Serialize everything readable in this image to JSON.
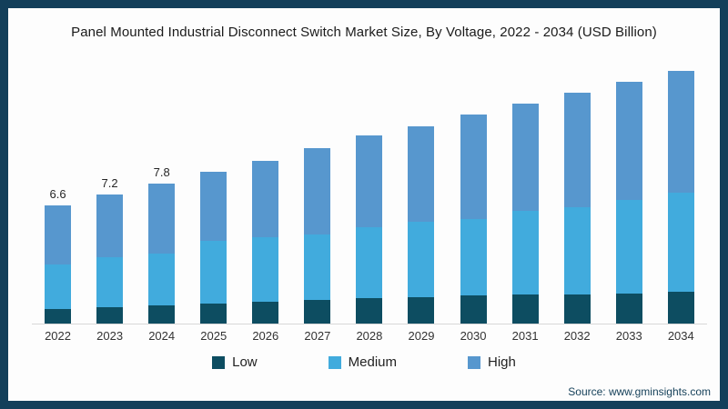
{
  "frame": {
    "border_color": "#133f5a",
    "background": "#fdfdfd"
  },
  "title": "Panel Mounted Industrial Disconnect Switch Market Size, By Voltage, 2022 - 2034 (USD Billion)",
  "source": "Source: www.gminsights.com",
  "legend": [
    {
      "label": "Low",
      "color": "#0d4d61"
    },
    {
      "label": "Medium",
      "color": "#41abdd"
    },
    {
      "label": "High",
      "color": "#5797ce"
    }
  ],
  "chart_data": {
    "type": "bar",
    "stacked": true,
    "title": "Panel Mounted Industrial Disconnect Switch Market Size, By Voltage, 2022 - 2034 (USD Billion)",
    "unit": "USD Billion",
    "categories": [
      "2022",
      "2023",
      "2024",
      "2025",
      "2026",
      "2027",
      "2028",
      "2029",
      "2030",
      "2031",
      "2032",
      "2033",
      "2034"
    ],
    "series": [
      {
        "name": "Low",
        "color": "#0d4d61",
        "values": [
          0.8,
          0.9,
          1.0,
          1.1,
          1.2,
          1.3,
          1.4,
          1.45,
          1.55,
          1.6,
          1.65,
          1.7,
          1.8
        ]
      },
      {
        "name": "Medium",
        "color": "#41abdd",
        "values": [
          2.5,
          2.8,
          2.9,
          3.5,
          3.6,
          3.7,
          4.0,
          4.25,
          4.3,
          4.7,
          4.85,
          5.2,
          5.5
        ]
      },
      {
        "name": "High",
        "color": "#5797ce",
        "values": [
          3.3,
          3.5,
          3.9,
          3.9,
          4.3,
          4.8,
          5.1,
          5.3,
          5.85,
          6.0,
          6.4,
          6.6,
          6.8
        ]
      }
    ],
    "totals": [
      6.6,
      7.2,
      7.8,
      8.5,
      9.1,
      9.8,
      10.5,
      11.0,
      11.7,
      12.3,
      12.9,
      13.5,
      14.1
    ],
    "bar_labels": [
      "6.6",
      "7.2",
      "7.8",
      "",
      "",
      "",
      "",
      "",
      "",
      "",
      "",
      "",
      ""
    ],
    "ylim": [
      0,
      14.7
    ],
    "gridlines": false,
    "y_axis_shown": false,
    "axis_line": true,
    "legend_position": "bottom"
  }
}
